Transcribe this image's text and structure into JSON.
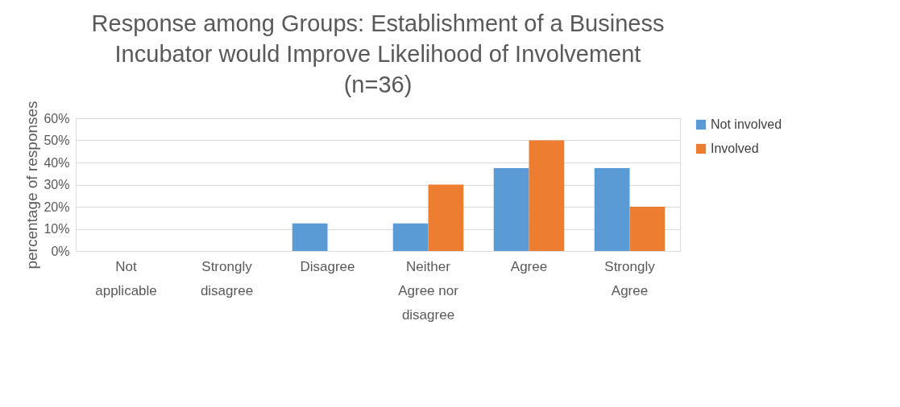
{
  "chart_data": {
    "type": "bar",
    "title": "Response among Groups: Establishment of a Business Incubator would Improve Likelihood of Involvement (n=36)",
    "ylabel": "percentage of responses",
    "categories": [
      "Not applicable",
      "Strongly disagree",
      "Disagree",
      "Neither Agree nor disagree",
      "Agree",
      "Strongly Agree"
    ],
    "series": [
      {
        "name": "Not involved",
        "color": "#5b9bd5",
        "values": [
          0,
          0,
          12.5,
          12.5,
          37.5,
          37.5
        ]
      },
      {
        "name": "Involved",
        "color": "#ed7d31",
        "values": [
          0,
          0,
          0,
          30,
          50,
          20
        ]
      }
    ],
    "ylim": [
      0,
      60
    ],
    "yticks": [
      {
        "value": 0,
        "label": "0%"
      },
      {
        "value": 10,
        "label": "10%"
      },
      {
        "value": 20,
        "label": "20%"
      },
      {
        "value": 30,
        "label": "30%"
      },
      {
        "value": 40,
        "label": "40%"
      },
      {
        "value": 50,
        "label": "50%"
      },
      {
        "value": 60,
        "label": "60%"
      }
    ],
    "grid": "y",
    "legend": "right"
  }
}
